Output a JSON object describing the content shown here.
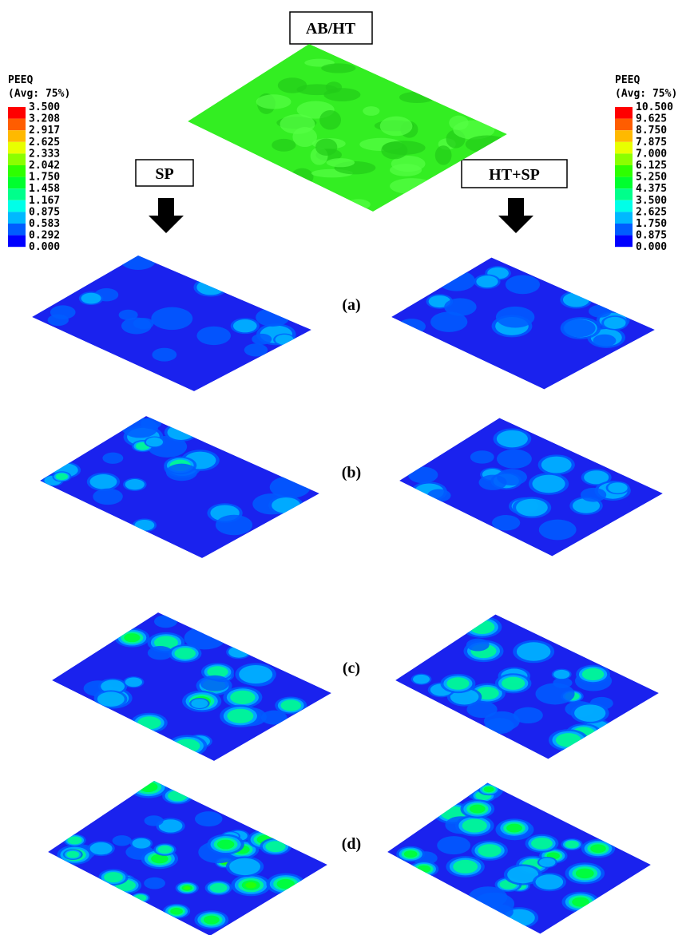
{
  "header": {
    "title": "AB/HT"
  },
  "columns": [
    "SP",
    "HT+SP"
  ],
  "rows": [
    "(a)",
    "(b)",
    "(c)",
    "(d)"
  ],
  "legends": [
    {
      "title": "PEEQ",
      "subtitle": "(Avg: 75%)",
      "labels": [
        "3.500",
        "3.208",
        "2.917",
        "2.625",
        "2.333",
        "2.042",
        "1.750",
        "1.458",
        "1.167",
        "0.875",
        "0.583",
        "0.292",
        "0.000"
      ]
    },
    {
      "title": "PEEQ",
      "subtitle": "(Avg: 75%)",
      "labels": [
        "10.500",
        "9.625",
        "8.750",
        "7.875",
        "7.000",
        "6.125",
        "5.250",
        "4.375",
        "3.500",
        "2.625",
        "1.750",
        "0.875",
        "0.000"
      ]
    }
  ],
  "legend_colors": [
    "#ff0000",
    "#ff5d00",
    "#ffb900",
    "#e8ff00",
    "#8bff00",
    "#2eff00",
    "#00ff2e",
    "#00ff8b",
    "#00ffe8",
    "#00b9ff",
    "#005dff",
    "#0000ff"
  ]
}
